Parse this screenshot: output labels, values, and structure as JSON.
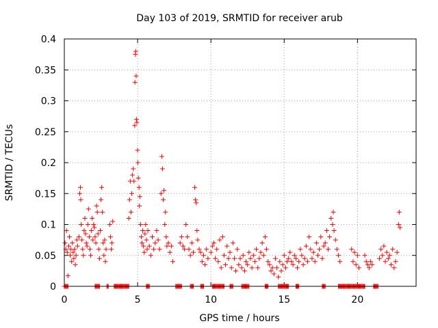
{
  "chart_data": {
    "type": "scatter",
    "title": "Day 103 of 2019, SRMTID for receiver arub",
    "xlabel": "GPS time / hours",
    "ylabel": "SRMTID / TECUs",
    "xlim": [
      0,
      24
    ],
    "ylim": [
      0,
      0.4
    ],
    "xticks": [
      0,
      5,
      10,
      15,
      20
    ],
    "xtick_labels": [
      "0",
      "5",
      "10",
      "15",
      "20"
    ],
    "yticks": [
      0,
      0.05,
      0.1,
      0.15,
      0.2,
      0.25,
      0.3,
      0.35,
      0.4
    ],
    "ytick_labels": [
      "0",
      "0.05",
      "0.1",
      "0.15",
      "0.2",
      "0.25",
      "0.3",
      "0.35",
      "0.4"
    ],
    "grid": true,
    "marker": "+",
    "marker_color": "#ff0000",
    "series": [
      {
        "name": "SRMTID",
        "points": [
          [
            0.05,
            0.07
          ],
          [
            0.1,
            0.06
          ],
          [
            0.15,
            0.09
          ],
          [
            0.2,
            0.055
          ],
          [
            0.25,
            0.017
          ],
          [
            0.3,
            0.065
          ],
          [
            0.35,
            0.08
          ],
          [
            0.4,
            0.05
          ],
          [
            0.45,
            0.06
          ],
          [
            0.5,
            0.04
          ],
          [
            0.55,
            0.07
          ],
          [
            0.6,
            0.055
          ],
          [
            0.65,
            0.045
          ],
          [
            0.7,
            0.06
          ],
          [
            0.75,
            0.035
          ],
          [
            0.8,
            0.05
          ],
          [
            0.85,
            0.075
          ],
          [
            0.9,
            0.065
          ],
          [
            1.0,
            0.08
          ],
          [
            1.05,
            0.15
          ],
          [
            1.1,
            0.16
          ],
          [
            1.12,
            0.14
          ],
          [
            1.15,
            0.1
          ],
          [
            1.2,
            0.075
          ],
          [
            1.25,
            0.06
          ],
          [
            1.3,
            0.05
          ],
          [
            1.35,
            0.09
          ],
          [
            1.4,
            0.11
          ],
          [
            1.45,
            0.085
          ],
          [
            1.5,
            0.07
          ],
          [
            1.55,
            0.065
          ],
          [
            1.6,
            0.1
          ],
          [
            1.65,
            0.125
          ],
          [
            1.7,
            0.08
          ],
          [
            1.75,
            0.06
          ],
          [
            1.8,
            0.05
          ],
          [
            1.85,
            0.09
          ],
          [
            1.9,
            0.11
          ],
          [
            1.95,
            0.075
          ],
          [
            2.0,
            0.1
          ],
          [
            2.05,
            0.095
          ],
          [
            2.1,
            0.08
          ],
          [
            2.15,
            0.07
          ],
          [
            2.2,
            0.13
          ],
          [
            2.25,
            0.12
          ],
          [
            2.3,
            0.085
          ],
          [
            2.35,
            0.06
          ],
          [
            2.4,
            0.045
          ],
          [
            2.45,
            0.09
          ],
          [
            2.5,
            0.14
          ],
          [
            2.55,
            0.16
          ],
          [
            2.6,
            0.12
          ],
          [
            2.65,
            0.07
          ],
          [
            2.7,
            0.05
          ],
          [
            2.75,
            0.075
          ],
          [
            2.8,
            0.04
          ],
          [
            2.85,
            0.06
          ],
          [
            3.1,
            0.1
          ],
          [
            3.15,
            0.08
          ],
          [
            3.2,
            0.06
          ],
          [
            3.25,
            0.07
          ],
          [
            3.3,
            0.105
          ],
          [
            4.4,
            0.11
          ],
          [
            4.45,
            0.14
          ],
          [
            4.5,
            0.17
          ],
          [
            4.55,
            0.12
          ],
          [
            4.6,
            0.15
          ],
          [
            4.65,
            0.18
          ],
          [
            4.7,
            0.19
          ],
          [
            4.75,
            0.17
          ],
          [
            4.8,
            0.26
          ],
          [
            4.82,
            0.33
          ],
          [
            4.85,
            0.375
          ],
          [
            4.87,
            0.38
          ],
          [
            4.9,
            0.34
          ],
          [
            4.92,
            0.27
          ],
          [
            4.95,
            0.265
          ],
          [
            5.0,
            0.22
          ],
          [
            5.02,
            0.2
          ],
          [
            5.05,
            0.175
          ],
          [
            5.1,
            0.16
          ],
          [
            5.12,
            0.13
          ],
          [
            5.15,
            0.145
          ],
          [
            5.2,
            0.1
          ],
          [
            5.25,
            0.08
          ],
          [
            5.3,
            0.07
          ],
          [
            5.35,
            0.09
          ],
          [
            5.4,
            0.065
          ],
          [
            5.45,
            0.055
          ],
          [
            5.5,
            0.085
          ],
          [
            5.55,
            0.1
          ],
          [
            5.6,
            0.075
          ],
          [
            5.65,
            0.06
          ],
          [
            5.7,
            0.09
          ],
          [
            5.8,
            0.065
          ],
          [
            5.9,
            0.05
          ],
          [
            6.0,
            0.08
          ],
          [
            6.1,
            0.06
          ],
          [
            6.2,
            0.07
          ],
          [
            6.3,
            0.09
          ],
          [
            6.4,
            0.075
          ],
          [
            6.5,
            0.06
          ],
          [
            6.6,
            0.15
          ],
          [
            6.65,
            0.21
          ],
          [
            6.7,
            0.19
          ],
          [
            6.75,
            0.14
          ],
          [
            6.8,
            0.155
          ],
          [
            6.85,
            0.1
          ],
          [
            6.9,
            0.12
          ],
          [
            6.95,
            0.08
          ],
          [
            7.0,
            0.065
          ],
          [
            7.1,
            0.07
          ],
          [
            7.2,
            0.055
          ],
          [
            7.3,
            0.065
          ],
          [
            7.4,
            0.04
          ],
          [
            7.9,
            0.07
          ],
          [
            8.0,
            0.08
          ],
          [
            8.1,
            0.065
          ],
          [
            8.2,
            0.06
          ],
          [
            8.3,
            0.1
          ],
          [
            8.4,
            0.08
          ],
          [
            8.5,
            0.06
          ],
          [
            8.6,
            0.05
          ],
          [
            8.7,
            0.07
          ],
          [
            8.8,
            0.055
          ],
          [
            8.9,
            0.16
          ],
          [
            8.95,
            0.14
          ],
          [
            9.0,
            0.135
          ],
          [
            9.05,
            0.09
          ],
          [
            9.1,
            0.075
          ],
          [
            9.2,
            0.06
          ],
          [
            9.3,
            0.055
          ],
          [
            9.4,
            0.04
          ],
          [
            9.5,
            0.05
          ],
          [
            9.6,
            0.035
          ],
          [
            9.7,
            0.06
          ],
          [
            9.8,
            0.045
          ],
          [
            10.0,
            0.055
          ],
          [
            10.1,
            0.065
          ],
          [
            10.2,
            0.07
          ],
          [
            10.3,
            0.045
          ],
          [
            10.4,
            0.06
          ],
          [
            10.5,
            0.04
          ],
          [
            10.6,
            0.075
          ],
          [
            10.7,
            0.03
          ],
          [
            10.8,
            0.08
          ],
          [
            10.9,
            0.05
          ],
          [
            11.0,
            0.035
          ],
          [
            11.1,
            0.065
          ],
          [
            11.2,
            0.045
          ],
          [
            11.3,
            0.055
          ],
          [
            11.4,
            0.03
          ],
          [
            11.5,
            0.07
          ],
          [
            11.6,
            0.045
          ],
          [
            11.7,
            0.025
          ],
          [
            11.8,
            0.06
          ],
          [
            11.9,
            0.035
          ],
          [
            12.0,
            0.045
          ],
          [
            12.1,
            0.03
          ],
          [
            12.2,
            0.05
          ],
          [
            12.3,
            0.025
          ],
          [
            12.4,
            0.04
          ],
          [
            12.5,
            0.035
          ],
          [
            12.6,
            0.055
          ],
          [
            12.7,
            0.045
          ],
          [
            12.8,
            0.03
          ],
          [
            12.9,
            0.05
          ],
          [
            13.0,
            0.04
          ],
          [
            13.1,
            0.06
          ],
          [
            13.2,
            0.03
          ],
          [
            13.3,
            0.045
          ],
          [
            13.4,
            0.055
          ],
          [
            13.5,
            0.07
          ],
          [
            13.6,
            0.05
          ],
          [
            13.7,
            0.08
          ],
          [
            13.8,
            0.06
          ],
          [
            13.9,
            0.04
          ],
          [
            14.0,
            0.035
          ],
          [
            14.1,
            0.025
          ],
          [
            14.2,
            0.03
          ],
          [
            14.3,
            0.02
          ],
          [
            14.4,
            0.045
          ],
          [
            14.5,
            0.03
          ],
          [
            14.6,
            0.015
          ],
          [
            14.7,
            0.04
          ],
          [
            14.8,
            0.025
          ],
          [
            14.9,
            0.035
          ],
          [
            15.0,
            0.05
          ],
          [
            15.1,
            0.03
          ],
          [
            15.2,
            0.04
          ],
          [
            15.3,
            0.045
          ],
          [
            15.4,
            0.055
          ],
          [
            15.5,
            0.04
          ],
          [
            15.6,
            0.035
          ],
          [
            15.7,
            0.05
          ],
          [
            15.8,
            0.045
          ],
          [
            15.9,
            0.03
          ],
          [
            16.0,
            0.04
          ],
          [
            16.1,
            0.06
          ],
          [
            16.2,
            0.05
          ],
          [
            16.3,
            0.035
          ],
          [
            16.4,
            0.045
          ],
          [
            16.5,
            0.065
          ],
          [
            16.6,
            0.04
          ],
          [
            16.7,
            0.08
          ],
          [
            16.8,
            0.06
          ],
          [
            16.9,
            0.045
          ],
          [
            17.0,
            0.055
          ],
          [
            17.1,
            0.04
          ],
          [
            17.2,
            0.07
          ],
          [
            17.3,
            0.05
          ],
          [
            17.4,
            0.06
          ],
          [
            17.5,
            0.08
          ],
          [
            17.6,
            0.045
          ],
          [
            17.7,
            0.065
          ],
          [
            17.8,
            0.07
          ],
          [
            17.9,
            0.09
          ],
          [
            18.0,
            0.06
          ],
          [
            18.1,
            0.08
          ],
          [
            18.2,
            0.11
          ],
          [
            18.3,
            0.1
          ],
          [
            18.35,
            0.12
          ],
          [
            18.4,
            0.09
          ],
          [
            18.5,
            0.075
          ],
          [
            18.6,
            0.06
          ],
          [
            18.7,
            0.05
          ],
          [
            18.8,
            0.04
          ],
          [
            19.6,
            0.06
          ],
          [
            19.7,
            0.04
          ],
          [
            19.8,
            0.055
          ],
          [
            19.9,
            0.035
          ],
          [
            20.0,
            0.05
          ],
          [
            20.1,
            0.03
          ],
          [
            20.5,
            0.05
          ],
          [
            20.6,
            0.04
          ],
          [
            20.7,
            0.035
          ],
          [
            20.8,
            0.03
          ],
          [
            20.9,
            0.04
          ],
          [
            21.0,
            0.035
          ],
          [
            21.5,
            0.045
          ],
          [
            21.6,
            0.06
          ],
          [
            21.7,
            0.05
          ],
          [
            21.8,
            0.065
          ],
          [
            21.9,
            0.04
          ],
          [
            22.0,
            0.055
          ],
          [
            22.1,
            0.045
          ],
          [
            22.2,
            0.05
          ],
          [
            22.3,
            0.035
          ],
          [
            22.4,
            0.06
          ],
          [
            22.5,
            0.03
          ],
          [
            22.6,
            0.04
          ],
          [
            22.7,
            0.055
          ],
          [
            22.8,
            0.1
          ],
          [
            22.85,
            0.12
          ],
          [
            22.9,
            0.095
          ]
        ]
      }
    ],
    "zero_runs_hours": [
      [
        0.0,
        0.25
      ],
      [
        2.1,
        2.4
      ],
      [
        2.9,
        3.0
      ],
      [
        3.4,
        4.4
      ],
      [
        5.6,
        5.8
      ],
      [
        7.6,
        8.0
      ],
      [
        8.6,
        8.8
      ],
      [
        9.3,
        9.5
      ],
      [
        10.1,
        10.9
      ],
      [
        11.3,
        11.5
      ],
      [
        12.1,
        12.6
      ],
      [
        13.7,
        13.9
      ],
      [
        14.6,
        15.3
      ],
      [
        15.8,
        16.0
      ],
      [
        17.6,
        17.8
      ],
      [
        18.7,
        18.9
      ],
      [
        18.9,
        20.5
      ],
      [
        21.1,
        21.4
      ]
    ]
  }
}
